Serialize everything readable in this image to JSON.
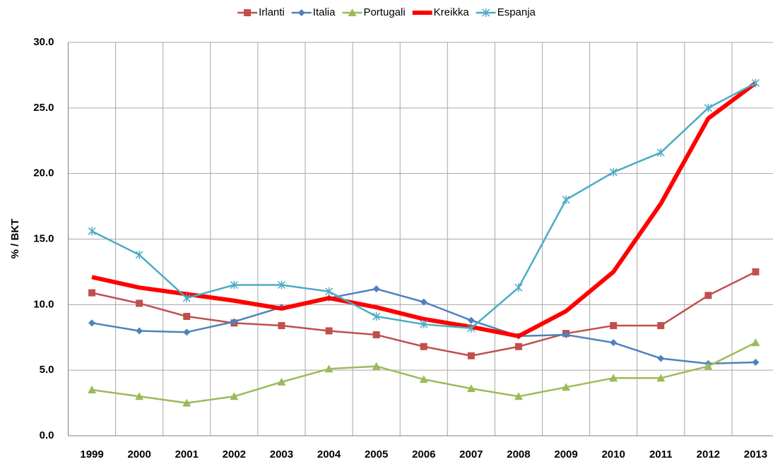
{
  "chart_data": {
    "type": "line",
    "y_label": "% / BKT",
    "categories": [
      "1999",
      "2000",
      "2001",
      "2002",
      "2003",
      "2004",
      "2005",
      "2006",
      "2007",
      "2008",
      "2009",
      "2010",
      "2011",
      "2012",
      "2013"
    ],
    "series": [
      {
        "name": "Irlanti",
        "color": "#c0504d",
        "marker": "square",
        "line_width": 2.5,
        "values": [
          10.9,
          10.1,
          9.1,
          8.6,
          8.4,
          8.0,
          7.7,
          6.8,
          6.1,
          6.8,
          7.8,
          8.4,
          8.4,
          10.7,
          12.5
        ]
      },
      {
        "name": "Italia",
        "color": "#4f81bd",
        "marker": "diamond",
        "line_width": 2.5,
        "values": [
          8.6,
          8.0,
          7.9,
          8.7,
          9.8,
          10.5,
          11.2,
          10.2,
          8.8,
          7.6,
          7.7,
          7.1,
          5.9,
          5.5,
          5.6
        ]
      },
      {
        "name": "Portugali",
        "color": "#9bbb59",
        "marker": "triangle",
        "line_width": 2.5,
        "values": [
          3.5,
          3.0,
          2.5,
          3.0,
          4.1,
          5.1,
          5.3,
          4.3,
          3.6,
          3.0,
          3.7,
          4.4,
          4.4,
          5.3,
          7.1
        ]
      },
      {
        "name": "Kreikka",
        "color": "#ff0000",
        "marker": "none",
        "line_width": 6,
        "values": [
          12.1,
          11.3,
          10.8,
          10.3,
          9.7,
          10.5,
          9.8,
          8.9,
          8.3,
          7.6,
          9.5,
          12.5,
          17.7,
          24.2,
          26.9
        ]
      },
      {
        "name": "Espanja",
        "color": "#4bacc6",
        "marker": "asterisk",
        "line_width": 2.5,
        "values": [
          15.6,
          13.8,
          10.5,
          11.5,
          11.5,
          11.0,
          9.1,
          8.5,
          8.2,
          11.3,
          18.0,
          20.1,
          21.6,
          25.0,
          26.9
        ]
      }
    ],
    "ylim": [
      0,
      30
    ],
    "yticks": [
      {
        "value": 0,
        "label": "0.0"
      },
      {
        "value": 5,
        "label": "5.0"
      },
      {
        "value": 10,
        "label": "10.0"
      },
      {
        "value": 15,
        "label": "15.0"
      },
      {
        "value": 20,
        "label": "20.0"
      },
      {
        "value": 25,
        "label": "25.0"
      },
      {
        "value": 30,
        "label": "30.0"
      }
    ],
    "grid": true,
    "legend": "top"
  }
}
